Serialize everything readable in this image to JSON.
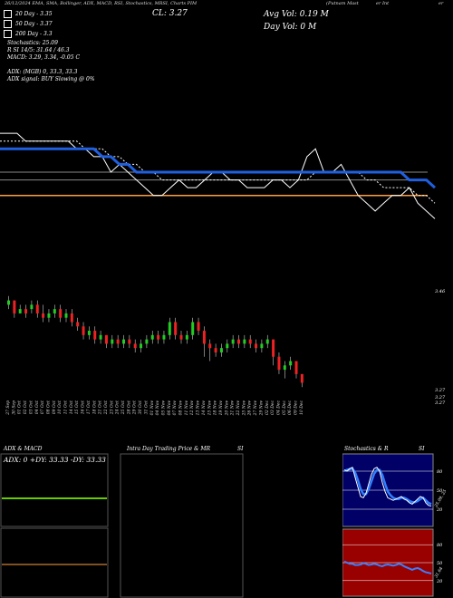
{
  "header": {
    "date_strip": "26/12/2024 EMA, SMA, Bollinger, ADX, MACD, RSI, Stochastics, MRSI, Charts PIM",
    "cl": "CL: 3.27",
    "brand": "(Putnam Mast",
    "brand_tail": "er Int",
    "brand_end": "er"
  },
  "volume": {
    "avg": "Avg Vol: 0.19 M",
    "day": "Day Vol: 0  M"
  },
  "ema_legend": [
    {
      "label": "20 Day - 3.35",
      "color": "#ffffff"
    },
    {
      "label": "50 Day - 3.37",
      "color": "#ffffff"
    },
    {
      "label": "200 Day - 3.3",
      "color": "#ffffff"
    }
  ],
  "stats_lines": [
    "Stochastics: 25.09",
    "R          SI 14/5: 31.64 / 46.3",
    "MACD: 3.29, 3.34, -0.05 C",
    "",
    "ADX:               (MGB) 0, 33.3, 33.3",
    "ADX  signal:                         BUY Slowing @ 0%"
  ],
  "price_axis": {
    "labels": [
      "3.46",
      "3.27",
      "3.27",
      "3.27"
    ]
  },
  "chart_data": [
    {
      "type": "line",
      "name": "price-overlay",
      "series": [
        {
          "name": "close",
          "color": "#ffffff",
          "values": [
            3.42,
            3.42,
            3.42,
            3.41,
            3.41,
            3.41,
            3.41,
            3.41,
            3.41,
            3.4,
            3.4,
            3.39,
            3.39,
            3.37,
            3.38,
            3.37,
            3.36,
            3.35,
            3.34,
            3.34,
            3.35,
            3.36,
            3.35,
            3.35,
            3.36,
            3.37,
            3.37,
            3.36,
            3.36,
            3.35,
            3.35,
            3.35,
            3.36,
            3.36,
            3.35,
            3.36,
            3.39,
            3.4,
            3.37,
            3.37,
            3.38,
            3.36,
            3.34,
            3.33,
            3.32,
            3.33,
            3.34,
            3.34,
            3.35,
            3.33,
            3.32,
            3.31
          ]
        },
        {
          "name": "ema",
          "color": "#ffffff",
          "values": [
            3.41,
            3.41,
            3.41,
            3.41,
            3.41,
            3.41,
            3.41,
            3.41,
            3.41,
            3.41,
            3.4,
            3.4,
            3.4,
            3.39,
            3.39,
            3.38,
            3.38,
            3.37,
            3.37,
            3.36,
            3.36,
            3.36,
            3.36,
            3.36,
            3.36,
            3.36,
            3.36,
            3.36,
            3.36,
            3.36,
            3.36,
            3.36,
            3.36,
            3.36,
            3.36,
            3.36,
            3.36,
            3.37,
            3.37,
            3.37,
            3.37,
            3.37,
            3.37,
            3.36,
            3.36,
            3.35,
            3.35,
            3.35,
            3.35,
            3.34,
            3.34,
            3.33
          ]
        },
        {
          "name": "trend",
          "color": "#1f5fe0",
          "values": [
            3.4,
            3.4,
            3.4,
            3.4,
            3.4,
            3.4,
            3.4,
            3.4,
            3.4,
            3.4,
            3.4,
            3.4,
            3.39,
            3.39,
            3.38,
            3.38,
            3.37,
            3.37,
            3.37,
            3.37,
            3.37,
            3.37,
            3.37,
            3.37,
            3.37,
            3.37,
            3.37,
            3.37,
            3.37,
            3.37,
            3.37,
            3.37,
            3.37,
            3.37,
            3.37,
            3.37,
            3.37,
            3.37,
            3.37,
            3.37,
            3.37,
            3.37,
            3.37,
            3.37,
            3.37,
            3.37,
            3.37,
            3.37,
            3.36,
            3.36,
            3.36,
            3.35
          ]
        }
      ],
      "hlines": [
        {
          "value": 3.37,
          "color": "#888888"
        },
        {
          "value": 3.36,
          "color": "#888888"
        },
        {
          "value": 3.34,
          "color": "#ffa040"
        }
      ],
      "ylim": [
        3.3,
        3.44
      ]
    },
    {
      "type": "candlestick",
      "name": "price-candles",
      "ylim": [
        3.25,
        3.48
      ],
      "candles": [
        {
          "o": 3.45,
          "c": 3.46,
          "h": 3.47,
          "l": 3.44,
          "d": "27 Sep"
        },
        {
          "o": 3.46,
          "c": 3.43,
          "h": 3.46,
          "l": 3.42,
          "d": "30 Sep"
        },
        {
          "o": 3.43,
          "c": 3.44,
          "h": 3.45,
          "l": 3.43,
          "d": "01 Oct"
        },
        {
          "o": 3.44,
          "c": 3.43,
          "h": 3.45,
          "l": 3.42,
          "d": "02 Oct"
        },
        {
          "o": 3.44,
          "c": 3.45,
          "h": 3.46,
          "l": 3.43,
          "d": "03 Oct"
        },
        {
          "o": 3.45,
          "c": 3.43,
          "h": 3.46,
          "l": 3.42,
          "d": "04 Oct"
        },
        {
          "o": 3.43,
          "c": 3.42,
          "h": 3.45,
          "l": 3.41,
          "d": "07 Oct"
        },
        {
          "o": 3.42,
          "c": 3.43,
          "h": 3.44,
          "l": 3.41,
          "d": "08 Oct"
        },
        {
          "o": 3.43,
          "c": 3.44,
          "h": 3.45,
          "l": 3.42,
          "d": "09 Oct"
        },
        {
          "o": 3.44,
          "c": 3.42,
          "h": 3.45,
          "l": 3.41,
          "d": "10 Oct"
        },
        {
          "o": 3.42,
          "c": 3.43,
          "h": 3.44,
          "l": 3.41,
          "d": "11 Oct"
        },
        {
          "o": 3.43,
          "c": 3.41,
          "h": 3.44,
          "l": 3.4,
          "d": "14 Oct"
        },
        {
          "o": 3.41,
          "c": 3.4,
          "h": 3.42,
          "l": 3.39,
          "d": "15 Oct"
        },
        {
          "o": 3.4,
          "c": 3.38,
          "h": 3.41,
          "l": 3.37,
          "d": "16 Oct"
        },
        {
          "o": 3.38,
          "c": 3.39,
          "h": 3.4,
          "l": 3.37,
          "d": "17 Oct"
        },
        {
          "o": 3.39,
          "c": 3.37,
          "h": 3.4,
          "l": 3.36,
          "d": "18 Oct"
        },
        {
          "o": 3.37,
          "c": 3.38,
          "h": 3.39,
          "l": 3.36,
          "d": "21 Oct"
        },
        {
          "o": 3.38,
          "c": 3.36,
          "h": 3.38,
          "l": 3.35,
          "d": "22 Oct"
        },
        {
          "o": 3.36,
          "c": 3.37,
          "h": 3.38,
          "l": 3.35,
          "d": "23 Oct"
        },
        {
          "o": 3.37,
          "c": 3.36,
          "h": 3.38,
          "l": 3.35,
          "d": "24 Oct"
        },
        {
          "o": 3.36,
          "c": 3.37,
          "h": 3.38,
          "l": 3.35,
          "d": "25 Oct"
        },
        {
          "o": 3.37,
          "c": 3.36,
          "h": 3.38,
          "l": 3.35,
          "d": "28 Oct"
        },
        {
          "o": 3.36,
          "c": 3.35,
          "h": 3.37,
          "l": 3.34,
          "d": "29 Oct"
        },
        {
          "o": 3.35,
          "c": 3.36,
          "h": 3.37,
          "l": 3.34,
          "d": "30 Oct"
        },
        {
          "o": 3.36,
          "c": 3.37,
          "h": 3.38,
          "l": 3.35,
          "d": "31 Oct"
        },
        {
          "o": 3.37,
          "c": 3.38,
          "h": 3.39,
          "l": 3.36,
          "d": "01 Nov"
        },
        {
          "o": 3.38,
          "c": 3.37,
          "h": 3.39,
          "l": 3.36,
          "d": "04 Nov"
        },
        {
          "o": 3.37,
          "c": 3.38,
          "h": 3.39,
          "l": 3.36,
          "d": "05 Nov"
        },
        {
          "o": 3.38,
          "c": 3.41,
          "h": 3.42,
          "l": 3.37,
          "d": "06 Nov"
        },
        {
          "o": 3.41,
          "c": 3.38,
          "h": 3.42,
          "l": 3.37,
          "d": "07 Nov"
        },
        {
          "o": 3.38,
          "c": 3.37,
          "h": 3.39,
          "l": 3.36,
          "d": "08 Nov"
        },
        {
          "o": 3.37,
          "c": 3.38,
          "h": 3.39,
          "l": 3.36,
          "d": "11 Nov"
        },
        {
          "o": 3.38,
          "c": 3.41,
          "h": 3.42,
          "l": 3.37,
          "d": "12 Nov"
        },
        {
          "o": 3.41,
          "c": 3.39,
          "h": 3.42,
          "l": 3.38,
          "d": "13 Nov"
        },
        {
          "o": 3.39,
          "c": 3.36,
          "h": 3.4,
          "l": 3.33,
          "d": "14 Nov"
        },
        {
          "o": 3.36,
          "c": 3.35,
          "h": 3.37,
          "l": 3.32,
          "d": "15 Nov"
        },
        {
          "o": 3.35,
          "c": 3.34,
          "h": 3.36,
          "l": 3.33,
          "d": "18 Nov"
        },
        {
          "o": 3.34,
          "c": 3.35,
          "h": 3.36,
          "l": 3.33,
          "d": "19 Nov"
        },
        {
          "o": 3.35,
          "c": 3.36,
          "h": 3.37,
          "l": 3.34,
          "d": "20 Nov"
        },
        {
          "o": 3.36,
          "c": 3.37,
          "h": 3.38,
          "l": 3.35,
          "d": "21 Nov"
        },
        {
          "o": 3.37,
          "c": 3.36,
          "h": 3.38,
          "l": 3.35,
          "d": "22 Nov"
        },
        {
          "o": 3.36,
          "c": 3.37,
          "h": 3.38,
          "l": 3.35,
          "d": "25 Nov"
        },
        {
          "o": 3.37,
          "c": 3.36,
          "h": 3.38,
          "l": 3.35,
          "d": "26 Nov"
        },
        {
          "o": 3.36,
          "c": 3.35,
          "h": 3.37,
          "l": 3.34,
          "d": "27 Nov"
        },
        {
          "o": 3.35,
          "c": 3.36,
          "h": 3.37,
          "l": 3.34,
          "d": "29 Nov"
        },
        {
          "o": 3.36,
          "c": 3.37,
          "h": 3.38,
          "l": 3.35,
          "d": "02 Dec"
        },
        {
          "o": 3.37,
          "c": 3.33,
          "h": 3.37,
          "l": 3.31,
          "d": "03 Dec"
        },
        {
          "o": 3.33,
          "c": 3.3,
          "h": 3.34,
          "l": 3.29,
          "d": "04 Dec"
        },
        {
          "o": 3.3,
          "c": 3.31,
          "h": 3.32,
          "l": 3.28,
          "d": "05 Dec"
        },
        {
          "o": 3.31,
          "c": 3.32,
          "h": 3.33,
          "l": 3.3,
          "d": "06 Dec"
        },
        {
          "o": 3.32,
          "c": 3.29,
          "h": 3.32,
          "l": 3.28,
          "d": "09 Dec"
        },
        {
          "o": 3.29,
          "c": 3.27,
          "h": 3.29,
          "l": 3.26,
          "d": "10 Dec"
        }
      ],
      "up_color": "#22cc22",
      "down_color": "#ee2222"
    }
  ],
  "adx_panel": {
    "title": "ADX  & MACD",
    "readout": "ADX: 0  +DY: 33.33  -DY: 33.33",
    "adx_line_color": "#66cc00",
    "macd_zero_color": "#ffa040"
  },
  "intraday_panel": {
    "title": "Intra  Day Trading Price  & MR",
    "title_tail": "SI"
  },
  "stoch_panel": {
    "title": "Stochastics & R",
    "title_tail": "SI",
    "axis_top": [
      "80",
      "50",
      "20"
    ],
    "axis_bottom": [
      "80",
      "50",
      "20"
    ],
    "readout": "25.09, 25",
    "rsi_readout": "31.64",
    "stoch_k": [
      82,
      80,
      84,
      86,
      70,
      55,
      40,
      38,
      45,
      60,
      75,
      84,
      86,
      80,
      62,
      48,
      38,
      36,
      34,
      36,
      38,
      40,
      36,
      34,
      30,
      28,
      32,
      36,
      40,
      38,
      30,
      26,
      25
    ],
    "stoch_d": [
      80,
      82,
      83,
      84,
      78,
      66,
      52,
      44,
      44,
      52,
      64,
      76,
      82,
      82,
      74,
      60,
      48,
      42,
      38,
      36,
      36,
      38,
      38,
      36,
      33,
      31,
      31,
      33,
      36,
      38,
      34,
      30,
      28
    ],
    "rsi": [
      52,
      50,
      48,
      48,
      46,
      46,
      47,
      49,
      48,
      46,
      47,
      48,
      47,
      45,
      44,
      46,
      47,
      46,
      45,
      46,
      48,
      47,
      44,
      42,
      40,
      38,
      40,
      41,
      39,
      36,
      34,
      33,
      31.64
    ]
  }
}
